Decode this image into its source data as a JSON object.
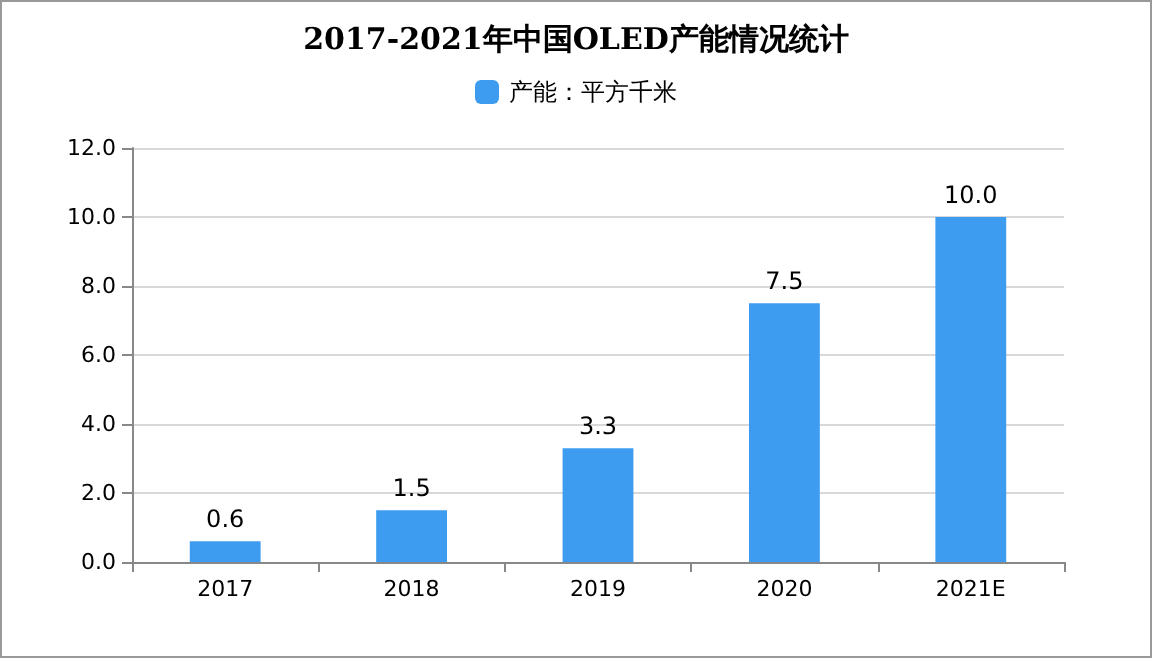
{
  "chart_data": {
    "type": "bar",
    "title": "2017-2021年中国OLED产能情况统计",
    "categories": [
      "2017",
      "2018",
      "2019",
      "2020",
      "2021E"
    ],
    "series": [
      {
        "name": "产能：平方千米",
        "color": "#3d9cf0",
        "values": [
          0.6,
          1.5,
          3.3,
          7.5,
          10.0
        ],
        "value_labels": [
          "0.6",
          "1.5",
          "3.3",
          "7.5",
          "10.0"
        ]
      }
    ],
    "ylim": [
      0,
      12
    ],
    "yticks": [
      {
        "value": 0,
        "label": "0.0"
      },
      {
        "value": 2,
        "label": "2.0"
      },
      {
        "value": 4,
        "label": "4.0"
      },
      {
        "value": 6,
        "label": "6.0"
      },
      {
        "value": 8,
        "label": "8.0"
      },
      {
        "value": 10,
        "label": "10.0"
      },
      {
        "value": 12,
        "label": "12.0"
      }
    ],
    "grid": "y",
    "legend": "top"
  }
}
